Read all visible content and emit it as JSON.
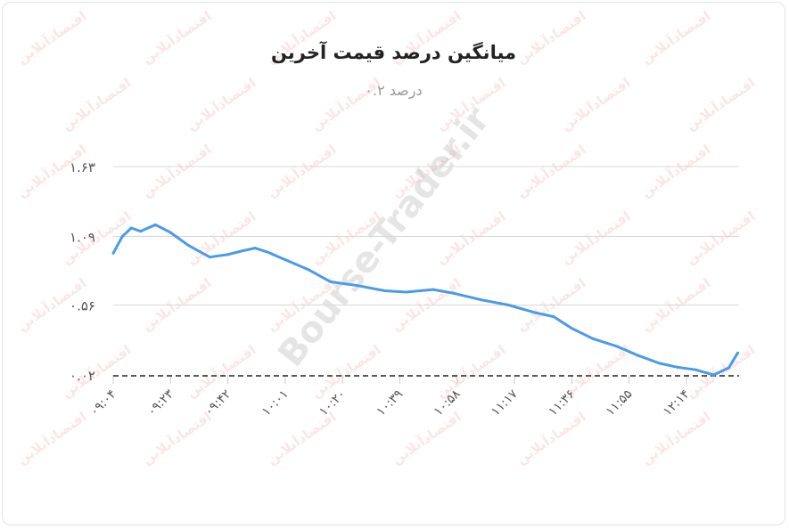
{
  "watermarks": {
    "brand": "اقتصادآنلاین",
    "site": "Bourse-Trader.ir"
  },
  "chart_data": {
    "type": "line",
    "title": "میانگین درصد قیمت آخرین",
    "subtitle": "درصد ۰.۲",
    "xlabel": "",
    "ylabel": "",
    "ylim": [
      0.02,
      1.63
    ],
    "y_ticks": [
      "۰.۰۲",
      "۰.۵۶",
      "۱.۰۹",
      "۱.۶۳"
    ],
    "y_tick_values": [
      0.02,
      0.56,
      1.09,
      1.63
    ],
    "x_ticks": [
      "۰۹:۰۴",
      "۰۹:۲۳",
      "۰۹:۴۲",
      "۱۰:۰۱",
      "۱۰:۲۰",
      "۱۰:۳۹",
      "۱۰:۵۸",
      "۱۱:۱۷",
      "۱۱:۳۶",
      "۱۱:۵۵",
      "۱۲:۱۴"
    ],
    "grid": true,
    "line_color": "#4a9be8",
    "x": [
      "09:04",
      "09:07",
      "09:10",
      "09:13",
      "09:18",
      "09:23",
      "09:29",
      "09:36",
      "09:42",
      "09:47",
      "09:51",
      "09:55",
      "10:01",
      "10:09",
      "10:16",
      "10:25",
      "10:34",
      "10:41",
      "10:50",
      "10:57",
      "11:06",
      "11:15",
      "11:24",
      "11:30",
      "11:36",
      "11:43",
      "11:51",
      "11:58",
      "12:05",
      "12:11",
      "12:17",
      "12:23",
      "12:28",
      "12:31"
    ],
    "values": [
      0.96,
      1.09,
      1.155,
      1.13,
      1.18,
      1.12,
      1.02,
      0.93,
      0.95,
      0.98,
      1.0,
      0.97,
      0.91,
      0.83,
      0.74,
      0.71,
      0.67,
      0.66,
      0.68,
      0.65,
      0.6,
      0.56,
      0.5,
      0.47,
      0.38,
      0.3,
      0.24,
      0.17,
      0.11,
      0.08,
      0.06,
      0.02,
      0.075,
      0.19
    ]
  }
}
